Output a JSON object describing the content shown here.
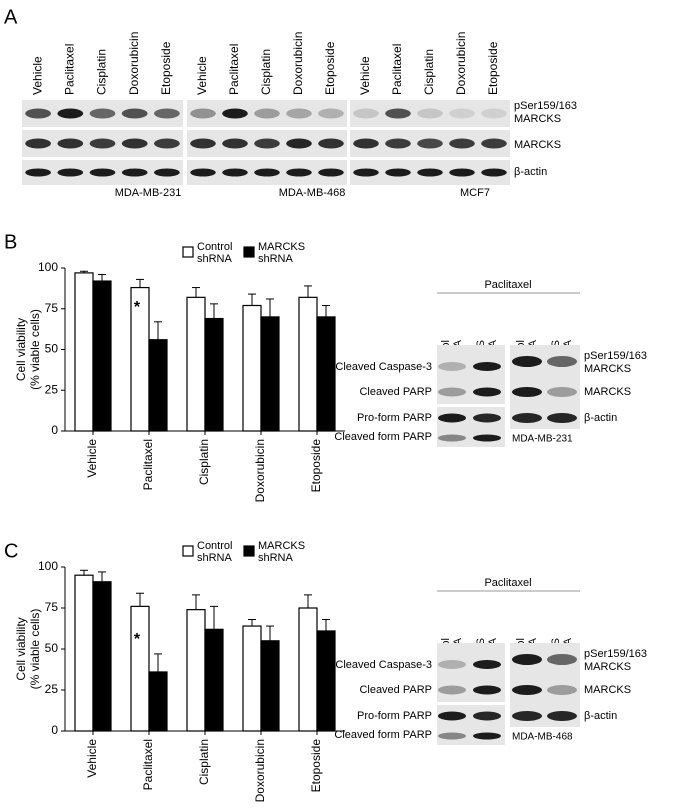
{
  "panel_labels": [
    "A",
    "B",
    "C"
  ],
  "panel_a": {
    "groups": [
      {
        "lanes": [
          "Vehicle",
          "Paclitaxel",
          "Cisplatin",
          "Doxorubicin",
          "Etoposide"
        ],
        "cell_line": "MDA-MB-231"
      },
      {
        "lanes": [
          "Vehicle",
          "Paclitaxel",
          "Cisplatin",
          "Doxorubicin",
          "Etoposide"
        ],
        "cell_line": "MDA-MB-468"
      },
      {
        "lanes": [
          "Vehicle",
          "Paclitaxel",
          "Cisplatin",
          "Doxorubicin",
          "Etoposide"
        ],
        "cell_line": "MCF7"
      }
    ],
    "row_labels": [
      "pSer159/163 MARCKS",
      "MARCKS",
      "β-actin"
    ]
  },
  "chart_data": [
    {
      "type": "bar",
      "y_label": [
        "Cell viability",
        "(% viable cells)"
      ],
      "categories": [
        "Vehicle",
        "Paclitaxel",
        "Cisplatin",
        "Doxorubicin",
        "Etoposide"
      ],
      "series": [
        {
          "name": "Control shRNA",
          "color": "#ffffff",
          "values": [
            97,
            88,
            82,
            77,
            82
          ],
          "errors": [
            1,
            5,
            6,
            7,
            7
          ]
        },
        {
          "name": "MARCKS shRNA",
          "color": "#000000",
          "values": [
            92,
            56,
            69,
            70,
            70
          ],
          "errors": [
            4,
            11,
            9,
            11,
            7
          ]
        }
      ],
      "annotations": [
        {
          "text": "*",
          "x": "Paclitaxel"
        }
      ],
      "ylim": [
        0,
        100
      ],
      "yticks": [
        0,
        25,
        50,
        75,
        100
      ]
    },
    {
      "type": "bar",
      "y_label": [
        "Cell viability",
        "(% viable cells)"
      ],
      "categories": [
        "Vehicle",
        "Paclitaxel",
        "Cisplatin",
        "Doxorubicin",
        "Etoposide"
      ],
      "series": [
        {
          "name": "Control shRNA",
          "color": "#ffffff",
          "values": [
            95,
            76,
            74,
            64,
            75
          ],
          "errors": [
            3,
            8,
            9,
            4,
            8
          ]
        },
        {
          "name": "MARCKS shRNA",
          "color": "#000000",
          "values": [
            91,
            36,
            62,
            55,
            61
          ],
          "errors": [
            6,
            11,
            14,
            9,
            7
          ]
        }
      ],
      "annotations": [
        {
          "text": "*",
          "x": "Paclitaxel"
        }
      ],
      "ylim": [
        0,
        100
      ],
      "yticks": [
        0,
        25,
        50,
        75,
        100
      ]
    }
  ],
  "blots": [
    {
      "header": "Paclitaxel",
      "lanes": [
        "Control shRNA",
        "MARCKS shRNA",
        "Control shRNA",
        "MARCKS shRNA"
      ],
      "left_labels": [
        "Cleaved Caspase-3",
        "Cleaved PARP",
        "Pro-form PARP",
        "Cleaved form PARP"
      ],
      "right_labels": [
        "pSer159/163 MARCKS",
        "MARCKS",
        "β-actin"
      ],
      "cell_line": "MDA-MB-231"
    },
    {
      "header": "Paclitaxel",
      "lanes": [
        "Control shRNA",
        "MARCKS shRNA",
        "Control shRNA",
        "MARCKS shRNA"
      ],
      "left_labels": [
        "Cleaved Caspase-3",
        "Cleaved PARP",
        "Pro-form PARP",
        "Cleaved form PARP"
      ],
      "right_labels": [
        "pSer159/163 MARCKS",
        "MARCKS",
        "β-actin"
      ],
      "cell_line": "MDA-MB-468"
    }
  ]
}
